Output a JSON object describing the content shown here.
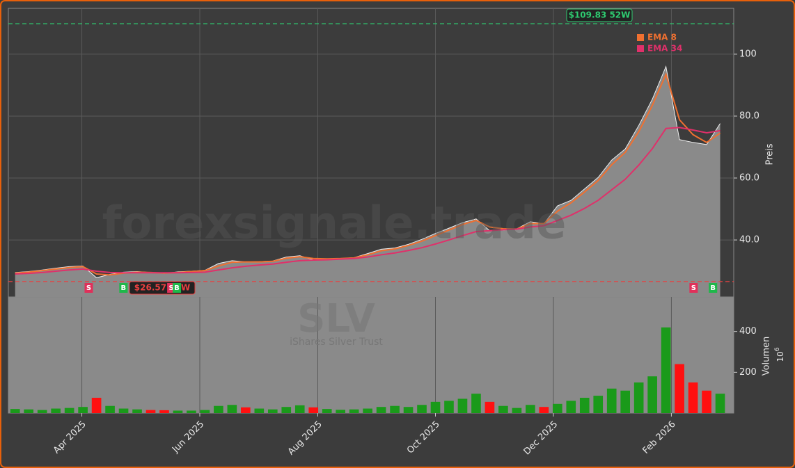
{
  "chart_data": {
    "type": "stock",
    "watermark": "forexsignale.trade",
    "symbol": "SLV",
    "name": "iShares Silver Trust",
    "categories": [
      null,
      null,
      null,
      null,
      null,
      null,
      null,
      null,
      null,
      null,
      null,
      null,
      null,
      null,
      null,
      null,
      null,
      null,
      null,
      null,
      null,
      null,
      null,
      null,
      null,
      null,
      null,
      null,
      null,
      null,
      null,
      null,
      null,
      null,
      null,
      null,
      null,
      null,
      null,
      null,
      null,
      null,
      null,
      null,
      null,
      null,
      null,
      null,
      null,
      null,
      null,
      null,
      null
    ],
    "xlim": [
      -0.5,
      53
    ],
    "xticks": [
      {
        "value": 4.92,
        "label": "Apr 2025"
      },
      {
        "value": 13.62,
        "label": "Jun 2025"
      },
      {
        "value": 22.32,
        "label": "Aug 2025"
      },
      {
        "value": 31.0,
        "label": "Oct 2025"
      },
      {
        "value": 39.7,
        "label": "Dec 2025"
      },
      {
        "value": 48.4,
        "label": "Feb 2026"
      }
    ],
    "price_axis_label": "Preis",
    "ylim": [
      21.6,
      114.8
    ],
    "yticks": [
      {
        "value": 40,
        "label": "40.0"
      },
      {
        "value": 60,
        "label": "60.0"
      },
      {
        "value": 80,
        "label": "80.0"
      },
      100
    ],
    "close": {
      "color": "#f0f0f0",
      "fill": "#8a8a8a",
      "values": [
        29.5,
        29.8,
        30.3,
        30.9,
        31.4,
        31.6,
        27.8,
        28.9,
        29.6,
        29.8,
        29.5,
        29.2,
        29.7,
        29.9,
        30.2,
        32.4,
        33.3,
        32.9,
        33.0,
        33.2,
        34.5,
        34.9,
        33.6,
        33.9,
        34.0,
        34.3,
        35.6,
        37.0,
        37.4,
        38.6,
        40.2,
        42.1,
        43.8,
        45.6,
        46.8,
        43.0,
        43.2,
        43.6,
        45.9,
        45.2,
        51.0,
        52.8,
        56.5,
        60.2,
        65.8,
        69.4,
        77.0,
        85.5,
        96.0,
        72.4,
        71.5,
        70.8,
        77.6
      ]
    },
    "series": [
      {
        "name": "EMA 8",
        "color": "#f07030",
        "values": [
          29.3,
          29.6,
          30.1,
          30.6,
          31.1,
          31.4,
          29.0,
          28.7,
          29.3,
          29.6,
          29.5,
          29.3,
          29.5,
          29.8,
          30.1,
          31.6,
          32.8,
          32.9,
          32.9,
          33.1,
          34.1,
          34.6,
          34.0,
          33.9,
          34.0,
          34.2,
          35.2,
          36.5,
          37.1,
          38.2,
          39.6,
          41.4,
          43.2,
          45.0,
          46.3,
          44.2,
          43.6,
          43.5,
          45.3,
          45.3,
          49.3,
          52.0,
          55.5,
          59.2,
          64.3,
          68.3,
          75.0,
          83.5,
          93.5,
          78.8,
          74.0,
          71.5,
          74.5
        ]
      },
      {
        "name": "EMA 34",
        "color": "#e0306a",
        "values": [
          29.0,
          29.2,
          29.5,
          29.9,
          30.3,
          30.6,
          29.9,
          29.5,
          29.4,
          29.4,
          29.4,
          29.4,
          29.4,
          29.5,
          29.6,
          30.3,
          31.0,
          31.5,
          31.9,
          32.2,
          32.8,
          33.3,
          33.5,
          33.6,
          33.8,
          34.0,
          34.5,
          35.2,
          35.8,
          36.6,
          37.5,
          38.7,
          40.0,
          41.4,
          42.7,
          43.0,
          43.3,
          43.5,
          44.2,
          44.6,
          46.3,
          48.0,
          50.2,
          52.8,
          56.2,
          59.6,
          64.2,
          69.5,
          76.0,
          76.3,
          75.5,
          74.6,
          75.3
        ]
      }
    ],
    "high_52w": {
      "value": 109.83,
      "label": "$109.83 52W",
      "color": "#2ecc71"
    },
    "low_52w": {
      "value": 26.57,
      "label": "$26.57 52W",
      "color": "#e84040"
    },
    "signals": [
      {
        "x": 5.43,
        "label": "S"
      },
      {
        "x": 7.99,
        "label": "B"
      },
      {
        "x": 11.52,
        "label": "S"
      },
      {
        "x": 11.93,
        "label": "B"
      },
      {
        "x": 50.04,
        "label": "S"
      },
      {
        "x": 51.47,
        "label": "B"
      }
    ],
    "volume": {
      "axis_label": "Volumen",
      "scale_base": "10",
      "scale_exponent": "6",
      "ylim": [
        0,
        566
      ],
      "yticks": [
        200,
        400
      ],
      "up_color": "#1a9a1a",
      "down_color": "#ff1010",
      "values": [
        20,
        18,
        15,
        22,
        25,
        30,
        75,
        35,
        22,
        18,
        15,
        14,
        12,
        12,
        15,
        35,
        40,
        28,
        22,
        18,
        30,
        38,
        28,
        20,
        16,
        18,
        22,
        30,
        35,
        30,
        40,
        55,
        60,
        70,
        95,
        55,
        35,
        25,
        40,
        30,
        45,
        60,
        75,
        85,
        120,
        110,
        150,
        180,
        420,
        240,
        150,
        110,
        95
      ]
    }
  }
}
